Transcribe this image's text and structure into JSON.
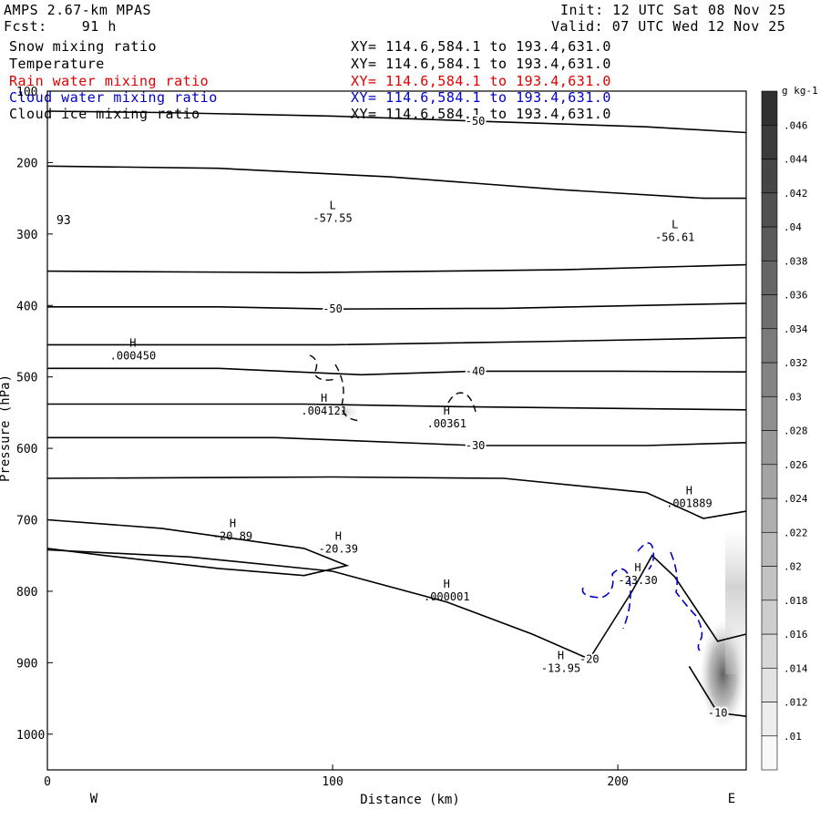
{
  "header": {
    "model": "AMPS 2.67-km MPAS",
    "fcst_label": "Fcst:",
    "fcst_value": "91 h",
    "init": "Init: 12 UTC Sat 08 Nov 25",
    "valid": "Valid: 07 UTC Wed 12 Nov 25"
  },
  "fields": [
    {
      "name": "Snow mixing ratio",
      "xy": "XY= 114.6,584.1 to 193.4,631.0",
      "color": "#000000"
    },
    {
      "name": "Temperature",
      "xy": "XY= 114.6,584.1 to 193.4,631.0",
      "color": "#000000"
    },
    {
      "name": "Rain water mixing ratio",
      "xy": "XY= 114.6,584.1 to 193.4,631.0",
      "color": "#e00000"
    },
    {
      "name": "Cloud water mixing ratio",
      "xy": "XY= 114.6,584.1 to 193.4,631.0",
      "color": "#0000cc"
    },
    {
      "name": "Cloud ice mixing ratio",
      "xy": "XY= 114.6,584.1 to 193.4,631.0",
      "color": "#000000"
    }
  ],
  "chart_data": {
    "type": "contour",
    "xlabel": "Distance (km)",
    "ylabel": "Pressure (hPa)",
    "xlim": [
      0,
      245
    ],
    "ylim": [
      1050,
      100
    ],
    "x_ticks": [
      0,
      100,
      200
    ],
    "y_ticks": [
      100,
      200,
      300,
      400,
      500,
      600,
      700,
      800,
      900,
      1000
    ],
    "left_end_label": "W",
    "right_end_label": "E",
    "stray_label": "93",
    "isotherms": [
      {
        "label": "-50",
        "points": [
          [
            0,
            128
          ],
          [
            40,
            130
          ],
          [
            100,
            135
          ],
          [
            150,
            142
          ],
          [
            210,
            150
          ],
          [
            245,
            158
          ]
        ]
      },
      {
        "label": "",
        "points": [
          [
            0,
            205
          ],
          [
            60,
            208
          ],
          [
            120,
            220
          ],
          [
            180,
            238
          ],
          [
            230,
            250
          ],
          [
            245,
            250
          ]
        ]
      },
      {
        "label": "",
        "points": [
          [
            0,
            352
          ],
          [
            90,
            354
          ],
          [
            180,
            350
          ],
          [
            245,
            343
          ]
        ]
      },
      {
        "label": "-50",
        "points": [
          [
            0,
            402
          ],
          [
            60,
            402
          ],
          [
            100,
            405
          ],
          [
            160,
            404
          ],
          [
            245,
            397
          ]
        ]
      },
      {
        "label": "",
        "points": [
          [
            0,
            455
          ],
          [
            100,
            455
          ],
          [
            180,
            450
          ],
          [
            245,
            445
          ]
        ]
      },
      {
        "label": "-40",
        "points": [
          [
            0,
            488
          ],
          [
            60,
            488
          ],
          [
            110,
            497
          ],
          [
            150,
            492
          ],
          [
            200,
            492
          ],
          [
            245,
            493
          ]
        ]
      },
      {
        "label": "",
        "points": [
          [
            0,
            538
          ],
          [
            90,
            538
          ],
          [
            150,
            542
          ],
          [
            245,
            546
          ]
        ]
      },
      {
        "label": "-30",
        "points": [
          [
            0,
            585
          ],
          [
            80,
            585
          ],
          [
            150,
            596
          ],
          [
            210,
            596
          ],
          [
            245,
            592
          ]
        ]
      },
      {
        "label": "",
        "points": [
          [
            0,
            642
          ],
          [
            100,
            640
          ],
          [
            160,
            642
          ],
          [
            210,
            662
          ],
          [
            230,
            698
          ],
          [
            245,
            688
          ]
        ]
      },
      {
        "label": "",
        "points": [
          [
            0,
            700
          ],
          [
            40,
            712
          ],
          [
            90,
            740
          ],
          [
            105,
            764
          ],
          [
            90,
            778
          ],
          [
            60,
            768
          ],
          [
            20,
            750
          ],
          [
            0,
            740
          ]
        ]
      },
      {
        "label": "-20",
        "points": [
          [
            0,
            742
          ],
          [
            50,
            752
          ],
          [
            100,
            772
          ],
          [
            140,
            815
          ],
          [
            170,
            860
          ],
          [
            190,
            895
          ],
          [
            205,
            800
          ],
          [
            212,
            750
          ],
          [
            220,
            780
          ],
          [
            235,
            870
          ],
          [
            245,
            860
          ]
        ]
      },
      {
        "label": "-10",
        "points": [
          [
            225,
            905
          ],
          [
            235,
            970
          ],
          [
            245,
            975
          ]
        ]
      }
    ],
    "extrema": [
      {
        "type": "L",
        "value": "-57.55",
        "x": 100,
        "p": 265
      },
      {
        "type": "L",
        "value": "-56.61",
        "x": 220,
        "p": 292
      },
      {
        "type": "H",
        "value": ".000450",
        "x": 30,
        "p": 458
      },
      {
        "type": "H",
        "value": ".004121",
        "x": 97,
        "p": 535
      },
      {
        "type": "H",
        "value": ".00361",
        "x": 140,
        "p": 553
      },
      {
        "type": "H",
        "value": ".001889",
        "x": 225,
        "p": 664
      },
      {
        "type": "H",
        "value": "-20.89",
        "x": 65,
        "p": 710
      },
      {
        "type": "H",
        "value": "-20.39",
        "x": 102,
        "p": 728
      },
      {
        "type": "H",
        "value": "-23.30",
        "x": 207,
        "p": 772
      },
      {
        "type": "H",
        "value": ".000001",
        "x": 140,
        "p": 795
      },
      {
        "type": "H",
        "value": "-13.95",
        "x": 180,
        "p": 895
      }
    ],
    "colorbar": {
      "unit": "g kg-1",
      "ticks": [
        ".01",
        ".012",
        ".014",
        ".016",
        ".018",
        ".02",
        ".022",
        ".024",
        ".026",
        ".028",
        ".03",
        ".032",
        ".034",
        ".036",
        ".038",
        ".04",
        ".042",
        ".044",
        ".046"
      ]
    }
  }
}
